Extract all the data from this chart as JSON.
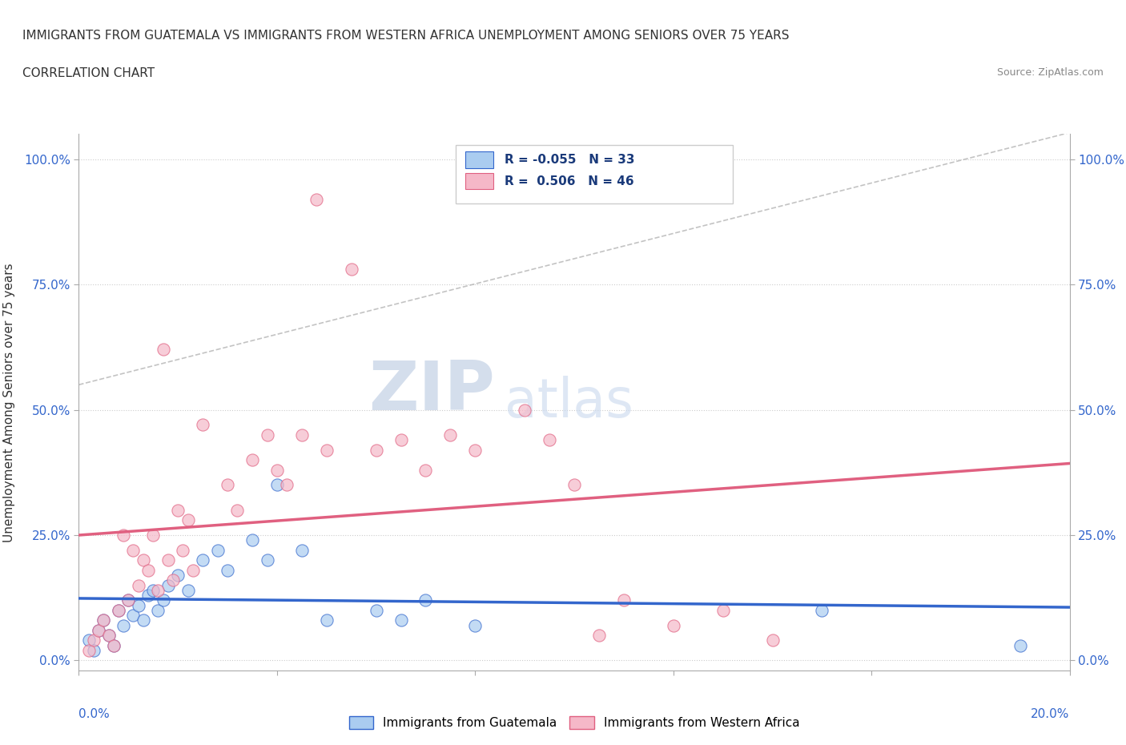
{
  "title_line1": "IMMIGRANTS FROM GUATEMALA VS IMMIGRANTS FROM WESTERN AFRICA UNEMPLOYMENT AMONG SENIORS OVER 75 YEARS",
  "title_line2": "CORRELATION CHART",
  "source": "Source: ZipAtlas.com",
  "ylabel": "Unemployment Among Seniors over 75 years",
  "xlim": [
    0.0,
    0.2
  ],
  "ylim": [
    -0.02,
    1.05
  ],
  "yticks": [
    0.0,
    0.25,
    0.5,
    0.75,
    1.0
  ],
  "ytick_labels": [
    "0.0%",
    "25.0%",
    "50.0%",
    "75.0%",
    "100.0%"
  ],
  "legend_R1": "-0.055",
  "legend_N1": "33",
  "legend_R2": "0.506",
  "legend_N2": "46",
  "color_guatemala": "#aaccf0",
  "color_western_africa": "#f5b8c8",
  "color_line_guatemala": "#3366cc",
  "color_line_western_africa": "#e06080",
  "color_watermark": "#c8d8ee",
  "watermark_ZIP": "#b8c8e0",
  "watermark_atlas": "#c8d8ee",
  "guatemala_scatter": [
    [
      0.002,
      0.04
    ],
    [
      0.003,
      0.02
    ],
    [
      0.004,
      0.06
    ],
    [
      0.005,
      0.08
    ],
    [
      0.006,
      0.05
    ],
    [
      0.007,
      0.03
    ],
    [
      0.008,
      0.1
    ],
    [
      0.009,
      0.07
    ],
    [
      0.01,
      0.12
    ],
    [
      0.011,
      0.09
    ],
    [
      0.012,
      0.11
    ],
    [
      0.013,
      0.08
    ],
    [
      0.014,
      0.13
    ],
    [
      0.015,
      0.14
    ],
    [
      0.016,
      0.1
    ],
    [
      0.017,
      0.12
    ],
    [
      0.018,
      0.15
    ],
    [
      0.02,
      0.17
    ],
    [
      0.022,
      0.14
    ],
    [
      0.025,
      0.2
    ],
    [
      0.028,
      0.22
    ],
    [
      0.03,
      0.18
    ],
    [
      0.035,
      0.24
    ],
    [
      0.038,
      0.2
    ],
    [
      0.04,
      0.35
    ],
    [
      0.045,
      0.22
    ],
    [
      0.05,
      0.08
    ],
    [
      0.06,
      0.1
    ],
    [
      0.065,
      0.08
    ],
    [
      0.07,
      0.12
    ],
    [
      0.08,
      0.07
    ],
    [
      0.15,
      0.1
    ],
    [
      0.19,
      0.03
    ]
  ],
  "western_africa_scatter": [
    [
      0.002,
      0.02
    ],
    [
      0.003,
      0.04
    ],
    [
      0.004,
      0.06
    ],
    [
      0.005,
      0.08
    ],
    [
      0.006,
      0.05
    ],
    [
      0.007,
      0.03
    ],
    [
      0.008,
      0.1
    ],
    [
      0.009,
      0.25
    ],
    [
      0.01,
      0.12
    ],
    [
      0.011,
      0.22
    ],
    [
      0.012,
      0.15
    ],
    [
      0.013,
      0.2
    ],
    [
      0.014,
      0.18
    ],
    [
      0.015,
      0.25
    ],
    [
      0.016,
      0.14
    ],
    [
      0.017,
      0.62
    ],
    [
      0.018,
      0.2
    ],
    [
      0.019,
      0.16
    ],
    [
      0.02,
      0.3
    ],
    [
      0.021,
      0.22
    ],
    [
      0.022,
      0.28
    ],
    [
      0.023,
      0.18
    ],
    [
      0.025,
      0.47
    ],
    [
      0.03,
      0.35
    ],
    [
      0.032,
      0.3
    ],
    [
      0.035,
      0.4
    ],
    [
      0.038,
      0.45
    ],
    [
      0.04,
      0.38
    ],
    [
      0.042,
      0.35
    ],
    [
      0.045,
      0.45
    ],
    [
      0.048,
      0.92
    ],
    [
      0.05,
      0.42
    ],
    [
      0.055,
      0.78
    ],
    [
      0.06,
      0.42
    ],
    [
      0.065,
      0.44
    ],
    [
      0.07,
      0.38
    ],
    [
      0.075,
      0.45
    ],
    [
      0.08,
      0.42
    ],
    [
      0.09,
      0.5
    ],
    [
      0.095,
      0.44
    ],
    [
      0.1,
      0.35
    ],
    [
      0.105,
      0.05
    ],
    [
      0.11,
      0.12
    ],
    [
      0.12,
      0.07
    ],
    [
      0.13,
      0.1
    ],
    [
      0.14,
      0.04
    ]
  ]
}
